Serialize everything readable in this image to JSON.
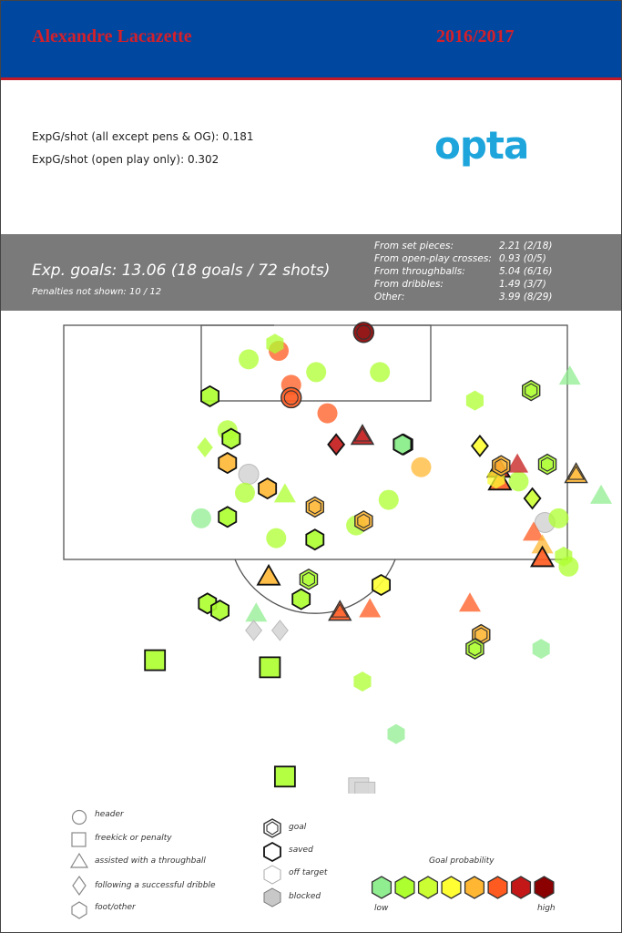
{
  "header": {
    "player": "Alexandre Lacazette",
    "season": "2016/2017"
  },
  "stats": {
    "per_shot_all": "ExpG/shot (all except pens & OG): 0.181",
    "per_shot_open": "ExpG/shot (open play only): 0.302",
    "logo_text": "opta"
  },
  "summary": {
    "total": "Exp. goals: 13.06 (18 goals / 72 shots)",
    "penalties": "Penalties not shown: 10 / 12",
    "breakdown": [
      {
        "label": "From set pieces:",
        "value": "2.21 (2/18)"
      },
      {
        "label": "From open-play crosses:",
        "value": "0.93 (0/5)"
      },
      {
        "label": "From throughballs:",
        "value": "5.04 (6/16)"
      },
      {
        "label": "From dribbles:",
        "value": "1.49 (3/7)"
      },
      {
        "label": "Other:",
        "value": "3.99 (8/29)"
      }
    ]
  },
  "legend": {
    "shapes": [
      {
        "shape": "circle",
        "label": "header"
      },
      {
        "shape": "square",
        "label": "freekick or penalty"
      },
      {
        "shape": "triangle",
        "label": "assisted with a throughball"
      },
      {
        "shape": "diamond",
        "label": "following a successful dribble"
      },
      {
        "shape": "hexagon",
        "label": "foot/other"
      }
    ],
    "outcomes": [
      {
        "outcome": "goal",
        "label": "goal"
      },
      {
        "outcome": "saved",
        "label": "saved"
      },
      {
        "outcome": "off",
        "label": "off target"
      },
      {
        "outcome": "blocked",
        "label": "blocked"
      }
    ],
    "prob_title": "Goal probability",
    "prob_low": "low",
    "prob_high": "high"
  },
  "colors": {
    "title_bar": "#0047a0",
    "title_text": "#d2202b",
    "band": "#7a7a7a",
    "probability_scale": [
      "#90ee90",
      "#adff2f",
      "#ccff33",
      "#ffff33",
      "#ffb733",
      "#ff5a1f",
      "#c41818",
      "#8b0000"
    ],
    "grey": "#d6d6d6"
  },
  "chart_data": {
    "type": "scatter",
    "title": "",
    "xlabel": "",
    "ylabel": "",
    "grid": false,
    "coordinate_note": "x across pitch, y distance from goal line (approx metres)",
    "shots": [
      {
        "x": 24.0,
        "y": 0.5,
        "shape": "circle",
        "outcome": "goal",
        "prob": 8
      },
      {
        "x": 20.2,
        "y": 3.3,
        "shape": "circle",
        "outcome": "off",
        "prob": 1
      },
      {
        "x": 25.3,
        "y": 3.3,
        "shape": "circle",
        "outcome": "off",
        "prob": 1
      },
      {
        "x": 17.2,
        "y": 1.8,
        "shape": "circle",
        "outcome": "off",
        "prob": 5
      },
      {
        "x": 18.2,
        "y": 4.2,
        "shape": "circle",
        "outcome": "off",
        "prob": 5
      },
      {
        "x": 18.2,
        "y": 5.1,
        "shape": "circle",
        "outcome": "goal",
        "prob": 5
      },
      {
        "x": 21.1,
        "y": 6.2,
        "shape": "circle",
        "outcome": "off",
        "prob": 5
      },
      {
        "x": 14.8,
        "y": 10.5,
        "shape": "circle",
        "outcome": "blocked",
        "prob": 0
      },
      {
        "x": 13.1,
        "y": 7.4,
        "shape": "circle",
        "outcome": "off",
        "prob": 1
      },
      {
        "x": 26.0,
        "y": 12.3,
        "shape": "circle",
        "outcome": "off",
        "prob": 1
      },
      {
        "x": 23.4,
        "y": 14.1,
        "shape": "circle",
        "outcome": "off",
        "prob": 1
      },
      {
        "x": 17.0,
        "y": 15.0,
        "shape": "circle",
        "outcome": "off",
        "prob": 1
      },
      {
        "x": 36.4,
        "y": 11.0,
        "shape": "circle",
        "outcome": "off",
        "prob": 1
      },
      {
        "x": 28.6,
        "y": 10.0,
        "shape": "circle",
        "outcome": "off",
        "prob": 4
      },
      {
        "x": 38.5,
        "y": 13.9,
        "shape": "circle",
        "outcome": "blocked",
        "prob": 0
      },
      {
        "x": 14.8,
        "y": 2.4,
        "shape": "circle",
        "outcome": "off",
        "prob": 1
      },
      {
        "x": 39.6,
        "y": 13.6,
        "shape": "circle",
        "outcome": "off",
        "prob": 1
      },
      {
        "x": 40.4,
        "y": 17.0,
        "shape": "circle",
        "outcome": "off",
        "prob": 1
      },
      {
        "x": 14.5,
        "y": 11.8,
        "shape": "circle",
        "outcome": "off",
        "prob": 1
      },
      {
        "x": 11.0,
        "y": 13.6,
        "shape": "circle",
        "outcome": "off",
        "prob": 0
      },
      {
        "x": 23.9,
        "y": 7.8,
        "shape": "triangle",
        "outcome": "goal",
        "prob": 6
      },
      {
        "x": 34.8,
        "y": 10.1,
        "shape": "triangle",
        "outcome": "saved",
        "prob": 6
      },
      {
        "x": 36.3,
        "y": 9.8,
        "shape": "triangle",
        "outcome": "off",
        "prob": 6
      },
      {
        "x": 34.9,
        "y": 11.0,
        "shape": "triangle",
        "outcome": "saved",
        "prob": 5
      },
      {
        "x": 37.6,
        "y": 14.6,
        "shape": "triangle",
        "outcome": "off",
        "prob": 5
      },
      {
        "x": 38.3,
        "y": 15.5,
        "shape": "triangle",
        "outcome": "off",
        "prob": 4
      },
      {
        "x": 38.3,
        "y": 16.4,
        "shape": "triangle",
        "outcome": "saved",
        "prob": 5
      },
      {
        "x": 41.0,
        "y": 10.5,
        "shape": "triangle",
        "outcome": "goal",
        "prob": 4
      },
      {
        "x": 43.0,
        "y": 12.0,
        "shape": "triangle",
        "outcome": "off",
        "prob": 0
      },
      {
        "x": 40.5,
        "y": 3.6,
        "shape": "triangle",
        "outcome": "off",
        "prob": 0
      },
      {
        "x": 16.4,
        "y": 17.7,
        "shape": "triangle",
        "outcome": "saved",
        "prob": 4
      },
      {
        "x": 22.1,
        "y": 20.2,
        "shape": "triangle",
        "outcome": "goal",
        "prob": 5
      },
      {
        "x": 24.5,
        "y": 20.0,
        "shape": "triangle",
        "outcome": "off",
        "prob": 5
      },
      {
        "x": 32.5,
        "y": 19.6,
        "shape": "triangle",
        "outcome": "off",
        "prob": 5
      },
      {
        "x": 15.4,
        "y": 20.3,
        "shape": "triangle",
        "outcome": "off",
        "prob": 0
      },
      {
        "x": 17.7,
        "y": 11.9,
        "shape": "triangle",
        "outcome": "off",
        "prob": 1
      },
      {
        "x": 21.8,
        "y": 8.4,
        "shape": "diamond",
        "outcome": "saved",
        "prob": 6
      },
      {
        "x": 33.3,
        "y": 8.5,
        "shape": "diamond",
        "outcome": "saved",
        "prob": 3
      },
      {
        "x": 37.5,
        "y": 12.2,
        "shape": "diamond",
        "outcome": "saved",
        "prob": 2
      },
      {
        "x": 11.3,
        "y": 8.6,
        "shape": "diamond",
        "outcome": "off",
        "prob": 1
      },
      {
        "x": 15.2,
        "y": 21.5,
        "shape": "diamond",
        "outcome": "blocked",
        "prob": 0
      },
      {
        "x": 17.3,
        "y": 21.5,
        "shape": "diamond",
        "outcome": "blocked",
        "prob": 0
      },
      {
        "x": 7.3,
        "y": 23.6,
        "shape": "square",
        "outcome": "saved",
        "prob": 1
      },
      {
        "x": 16.5,
        "y": 24.1,
        "shape": "square",
        "outcome": "saved",
        "prob": 1
      },
      {
        "x": 17.7,
        "y": 31.8,
        "shape": "square",
        "outcome": "saved",
        "prob": 1
      },
      {
        "x": 23.6,
        "y": 32.6,
        "shape": "square",
        "outcome": "blocked",
        "prob": 0
      },
      {
        "x": 24.1,
        "y": 32.9,
        "shape": "square",
        "outcome": "blocked",
        "prob": 0
      },
      {
        "x": 14.9,
        "y": 34.9,
        "shape": "square",
        "outcome": "blocked",
        "prob": 0
      },
      {
        "x": 11.7,
        "y": 5.0,
        "shape": "hexagon",
        "outcome": "saved",
        "prob": 1
      },
      {
        "x": 13.4,
        "y": 8.0,
        "shape": "hexagon",
        "outcome": "saved",
        "prob": 1
      },
      {
        "x": 13.1,
        "y": 9.7,
        "shape": "hexagon",
        "outcome": "saved",
        "prob": 4
      },
      {
        "x": 16.3,
        "y": 11.5,
        "shape": "hexagon",
        "outcome": "saved",
        "prob": 4
      },
      {
        "x": 13.1,
        "y": 13.5,
        "shape": "hexagon",
        "outcome": "saved",
        "prob": 1
      },
      {
        "x": 20.1,
        "y": 12.8,
        "shape": "hexagon",
        "outcome": "goal",
        "prob": 4
      },
      {
        "x": 20.1,
        "y": 15.1,
        "shape": "hexagon",
        "outcome": "saved",
        "prob": 1
      },
      {
        "x": 24.0,
        "y": 13.8,
        "shape": "hexagon",
        "outcome": "goal",
        "prob": 4
      },
      {
        "x": 19.6,
        "y": 17.9,
        "shape": "hexagon",
        "outcome": "goal",
        "prob": 1
      },
      {
        "x": 19.0,
        "y": 19.3,
        "shape": "hexagon",
        "outcome": "saved",
        "prob": 1
      },
      {
        "x": 25.4,
        "y": 18.3,
        "shape": "hexagon",
        "outcome": "saved",
        "prob": 3
      },
      {
        "x": 11.5,
        "y": 19.6,
        "shape": "hexagon",
        "outcome": "saved",
        "prob": 1
      },
      {
        "x": 12.5,
        "y": 20.1,
        "shape": "hexagon",
        "outcome": "saved",
        "prob": 1
      },
      {
        "x": 27.2,
        "y": 8.4,
        "shape": "hexagon",
        "outcome": "saved",
        "prob": 0
      },
      {
        "x": 34.6,
        "y": 10.8,
        "shape": "hexagon",
        "outcome": "off",
        "prob": 3
      },
      {
        "x": 32.9,
        "y": 5.3,
        "shape": "hexagon",
        "outcome": "off",
        "prob": 1
      },
      {
        "x": 37.4,
        "y": 4.6,
        "shape": "hexagon",
        "outcome": "goal",
        "prob": 1
      },
      {
        "x": 35.0,
        "y": 9.9,
        "shape": "hexagon",
        "outcome": "goal",
        "prob": 4
      },
      {
        "x": 38.7,
        "y": 9.8,
        "shape": "hexagon",
        "outcome": "goal",
        "prob": 1
      },
      {
        "x": 40.0,
        "y": 16.3,
        "shape": "hexagon",
        "outcome": "off",
        "prob": 1
      },
      {
        "x": 33.4,
        "y": 21.8,
        "shape": "hexagon",
        "outcome": "goal",
        "prob": 4
      },
      {
        "x": 32.9,
        "y": 22.8,
        "shape": "hexagon",
        "outcome": "goal",
        "prob": 1
      },
      {
        "x": 38.2,
        "y": 22.8,
        "shape": "hexagon",
        "outcome": "off",
        "prob": 0
      },
      {
        "x": 23.9,
        "y": 25.1,
        "shape": "hexagon",
        "outcome": "off",
        "prob": 1
      },
      {
        "x": 26.6,
        "y": 28.8,
        "shape": "hexagon",
        "outcome": "off",
        "prob": 0
      },
      {
        "x": 16.9,
        "y": 1.3,
        "shape": "hexagon",
        "outcome": "off",
        "prob": 1
      },
      {
        "x": 27.1,
        "y": 8.4,
        "shape": "hexagon",
        "outcome": "saved",
        "prob": 0
      }
    ]
  }
}
